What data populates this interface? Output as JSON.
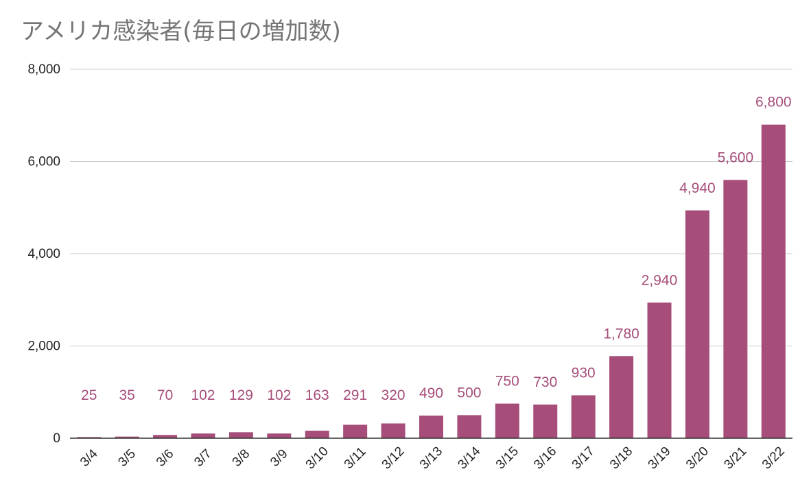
{
  "chart_data": {
    "type": "bar",
    "title": "アメリカ感染者(毎日の増加数)",
    "xlabel": "",
    "ylabel": "",
    "categories": [
      "3/4",
      "3/5",
      "3/6",
      "3/7",
      "3/8",
      "3/9",
      "3/10",
      "3/11",
      "3/12",
      "3/13",
      "3/14",
      "3/15",
      "3/16",
      "3/17",
      "3/18",
      "3/19",
      "3/20",
      "3/21",
      "3/22"
    ],
    "values": [
      25,
      35,
      70,
      102,
      129,
      102,
      163,
      291,
      320,
      490,
      500,
      750,
      730,
      930,
      1780,
      2940,
      4940,
      5600,
      6800
    ],
    "data_labels": [
      "25",
      "35",
      "70",
      "102",
      "129",
      "102",
      "163",
      "291",
      "320",
      "490",
      "500",
      "750",
      "730",
      "930",
      "1,780",
      "2,940",
      "4,940",
      "5,600",
      "6,800"
    ],
    "ylim": [
      0,
      8000
    ],
    "yticks": [
      0,
      2000,
      4000,
      6000,
      8000
    ],
    "ytick_labels": [
      "0",
      "2,000",
      "4,000",
      "6,000",
      "8,000"
    ],
    "grid": true,
    "legend": "none",
    "colors": {
      "bar": "#a64d79",
      "label": "#a64d79",
      "grid": "#cccccc",
      "axis": "#333333",
      "tick_text": "#222222"
    }
  }
}
